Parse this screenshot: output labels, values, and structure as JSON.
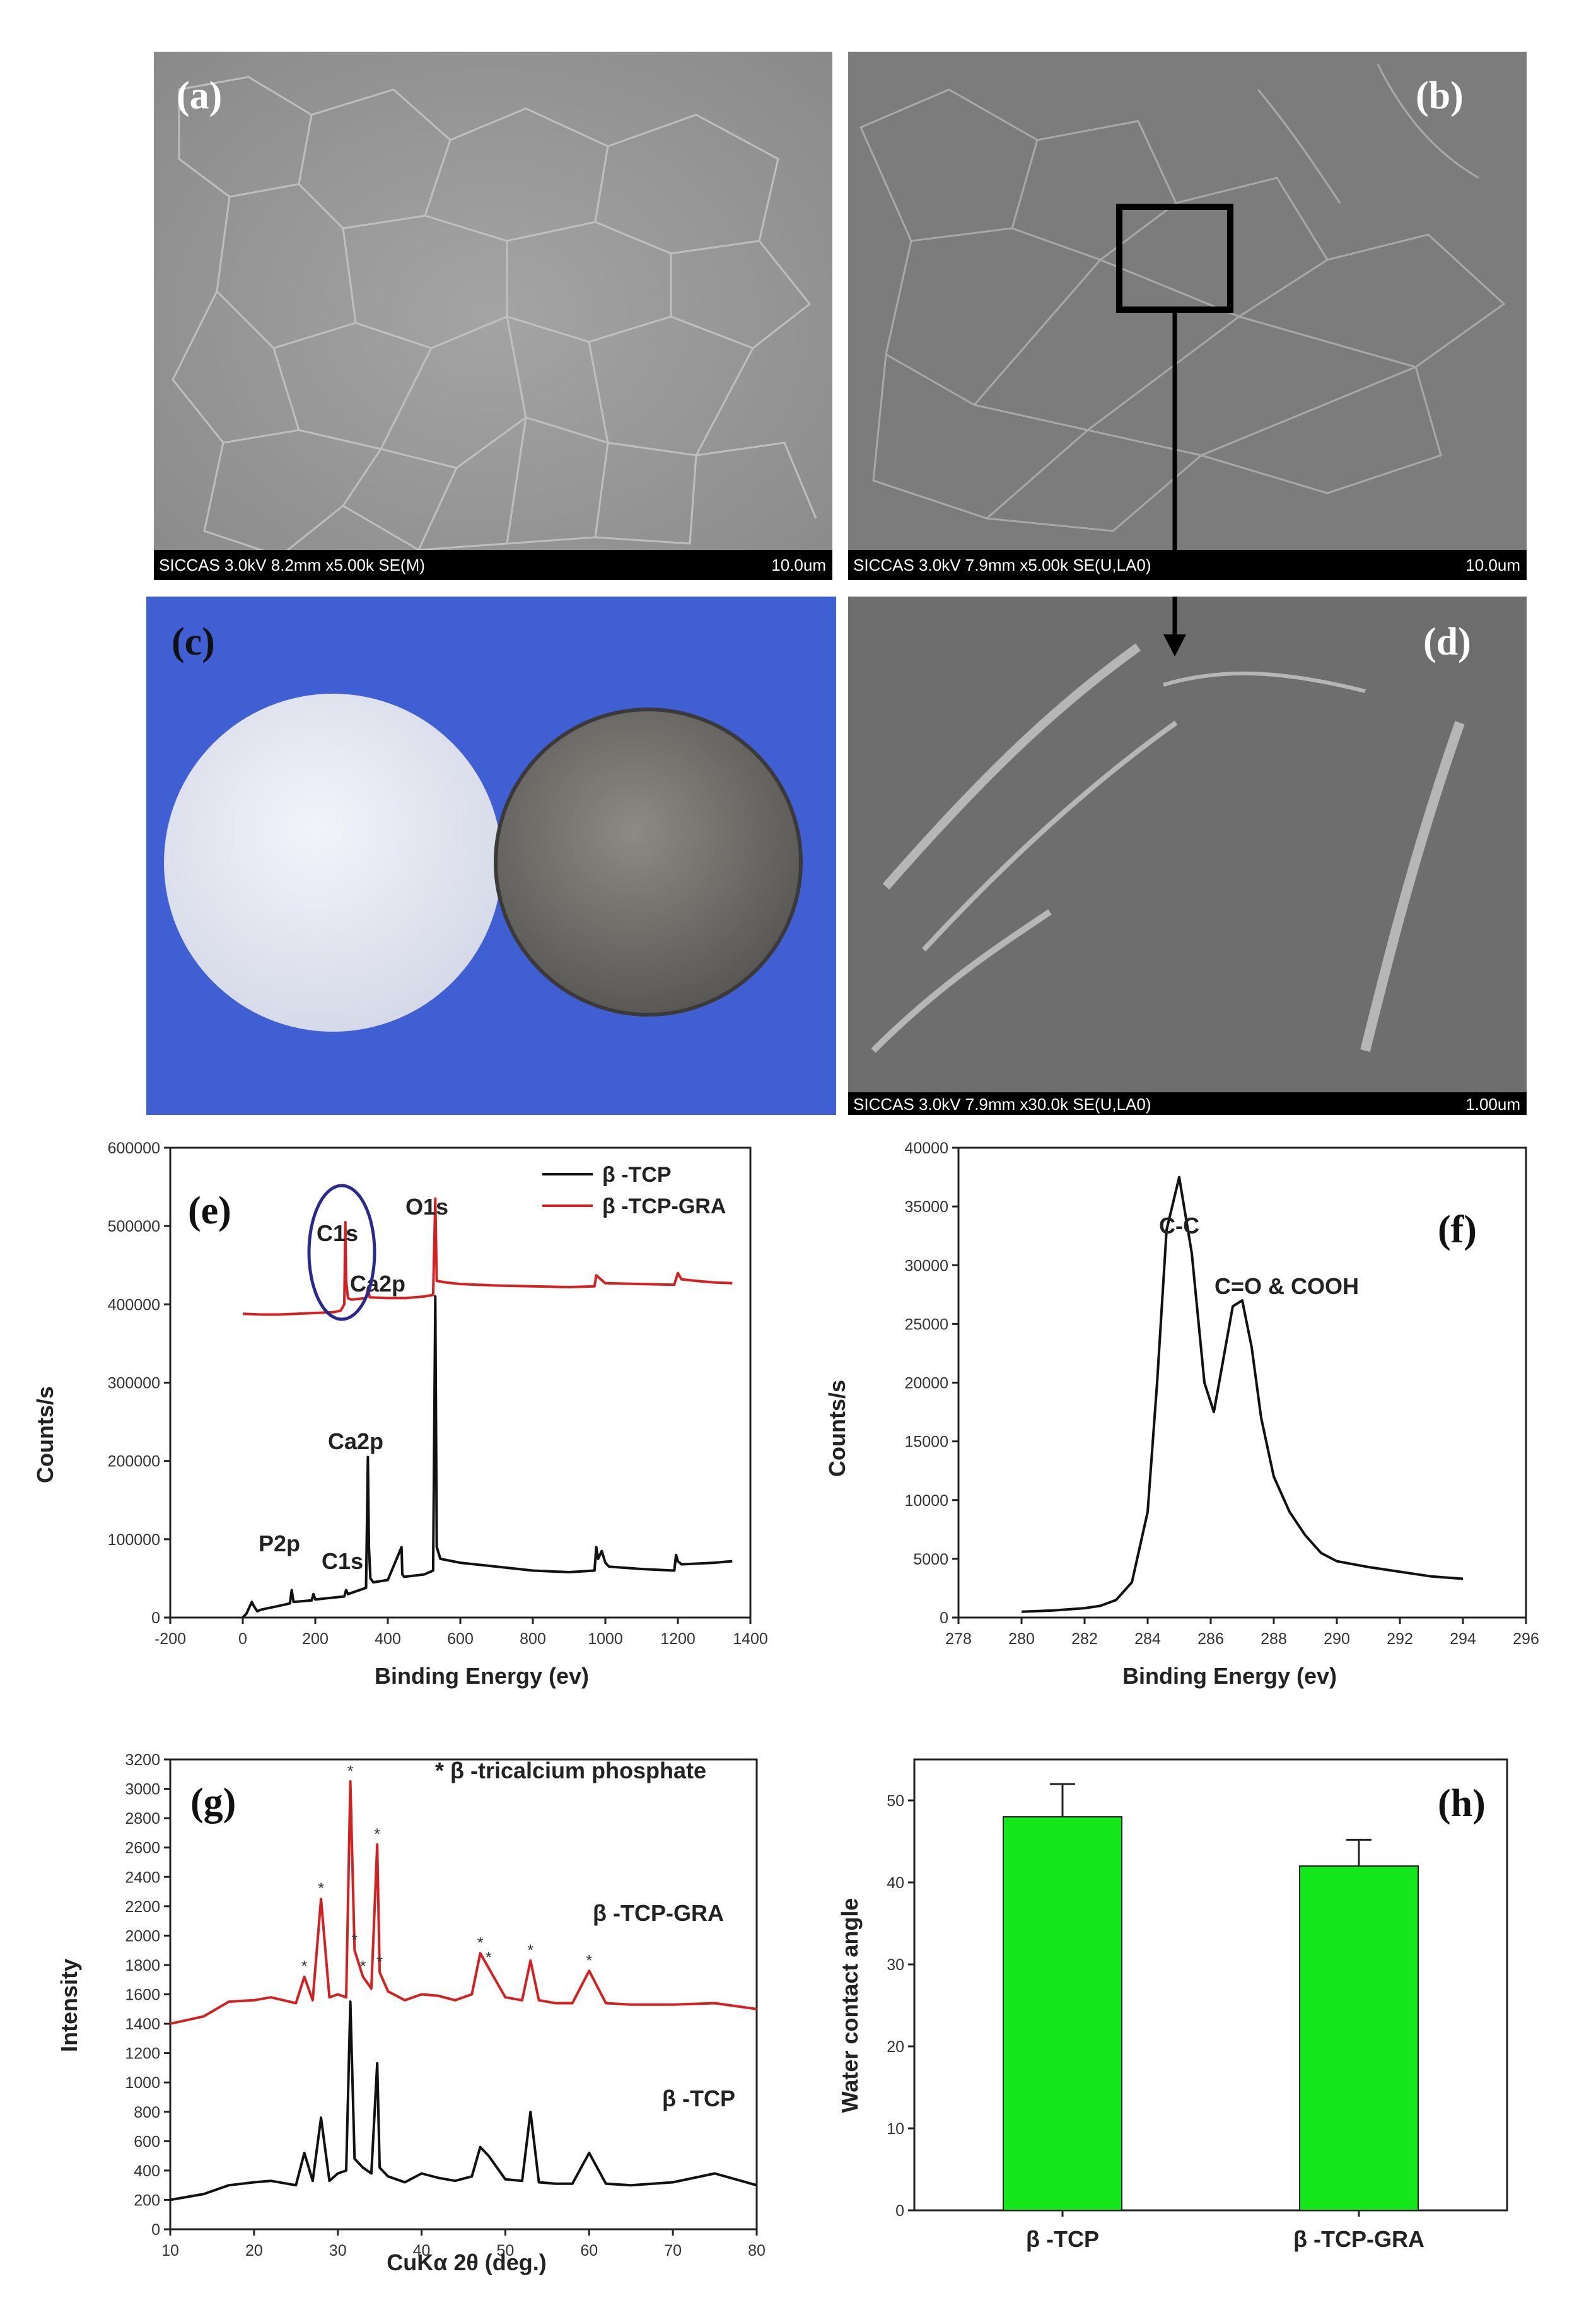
{
  "panels": {
    "a": {
      "label": "(a)",
      "info": "SICCAS 3.0kV 8.2mm x5.00k SE(M)",
      "scale": "10.0um"
    },
    "b": {
      "label": "(b)",
      "info": "SICCAS 3.0kV 7.9mm x5.00k SE(U,LA0)",
      "scale": "10.0um"
    },
    "c": {
      "label": "(c)"
    },
    "d": {
      "label": "(d)",
      "info": "SICCAS 3.0kV 7.9mm x30.0k SE(U,LA0)",
      "scale": "1.00um"
    },
    "e": {
      "label": "(e)"
    },
    "f": {
      "label": "(f)"
    },
    "g": {
      "label": "(g)"
    },
    "h": {
      "label": "(h)"
    }
  },
  "colors": {
    "tcp": "#111111",
    "tcp_gra": "#d32121",
    "bar": "#14e81a",
    "ellipse": "#2a2a8e",
    "photo_bg": "#3f5fd2"
  },
  "chart_data": [
    {
      "id": "e",
      "type": "line",
      "xlabel": "Binding Energy (ev)",
      "ylabel": "Counts/s",
      "xlim": [
        -200,
        1400
      ],
      "ylim": [
        0,
        600000
      ],
      "xticks": [
        -200,
        0,
        200,
        400,
        600,
        800,
        1000,
        1200,
        1400
      ],
      "yticks": [
        0,
        100000,
        200000,
        300000,
        400000,
        500000,
        600000
      ],
      "legend": [
        "β -TCP",
        "β -TCP-GRA"
      ],
      "legend_position": "top-right",
      "annotations": [
        "C1s",
        "O1s",
        "Ca2p",
        "Ca2p",
        "P2p",
        "C1s"
      ],
      "series": [
        {
          "name": "β -TCP",
          "x": [
            0,
            10,
            25,
            30,
            40,
            50,
            100,
            130,
            135,
            140,
            190,
            195,
            200,
            280,
            285,
            290,
            340,
            345,
            348,
            352,
            360,
            400,
            438,
            440,
            445,
            500,
            525,
            531,
            535,
            545,
            600,
            700,
            800,
            900,
            970,
            975,
            980,
            990,
            1000,
            1010,
            1100,
            1190,
            1195,
            1200,
            1210,
            1300,
            1350
          ],
          "y": [
            0,
            5000,
            20000,
            15000,
            8000,
            10000,
            15000,
            18000,
            35000,
            20000,
            22000,
            30000,
            23000,
            27000,
            35000,
            30000,
            38000,
            205000,
            90000,
            50000,
            45000,
            48000,
            90000,
            55000,
            52000,
            55000,
            60000,
            410000,
            90000,
            75000,
            70000,
            65000,
            60000,
            58000,
            60000,
            90000,
            75000,
            85000,
            70000,
            65000,
            62000,
            60000,
            80000,
            72000,
            68000,
            70000,
            72000
          ]
        },
        {
          "name": "β -TCP-GRA",
          "x": [
            0,
            50,
            100,
            150,
            200,
            250,
            270,
            280,
            283,
            285,
            290,
            300,
            340,
            345,
            350,
            400,
            450,
            500,
            525,
            531,
            535,
            560,
            600,
            700,
            800,
            900,
            970,
            975,
            1000,
            1100,
            1190,
            1200,
            1210,
            1250,
            1300,
            1350
          ],
          "y": [
            388000,
            387000,
            387000,
            388000,
            389000,
            390000,
            392000,
            400000,
            505000,
            430000,
            408000,
            406000,
            408000,
            420000,
            409000,
            408000,
            408000,
            410000,
            412000,
            535000,
            430000,
            428000,
            426000,
            424000,
            423000,
            422000,
            423000,
            437000,
            427000,
            426000,
            425000,
            440000,
            432000,
            430000,
            428000,
            427000
          ]
        }
      ]
    },
    {
      "id": "f",
      "type": "line",
      "xlabel": "Binding Energy (ev)",
      "ylabel": "Counts/s",
      "xlim": [
        278,
        296
      ],
      "ylim": [
        0,
        40000
      ],
      "xticks": [
        278,
        280,
        282,
        284,
        286,
        288,
        290,
        292,
        294,
        296
      ],
      "yticks": [
        0,
        5000,
        10000,
        15000,
        20000,
        25000,
        30000,
        35000,
        40000
      ],
      "annotations": [
        "C-C",
        "C=O & COOH"
      ],
      "series": [
        {
          "name": "",
          "x": [
            280,
            281,
            282,
            282.5,
            283,
            283.5,
            284,
            284.3,
            284.6,
            285,
            285.4,
            285.8,
            286.1,
            286.4,
            286.7,
            287,
            287.3,
            287.6,
            288,
            288.5,
            289,
            289.5,
            290,
            291,
            292,
            293,
            294
          ],
          "y": [
            500,
            600,
            800,
            1000,
            1500,
            3000,
            9000,
            20000,
            33000,
            37500,
            31000,
            20000,
            17500,
            22000,
            26500,
            27000,
            23000,
            17000,
            12000,
            9000,
            7000,
            5500,
            4800,
            4300,
            3900,
            3500,
            3300
          ]
        }
      ]
    },
    {
      "id": "g",
      "type": "line",
      "xlabel": "CuKα 2θ (deg.)",
      "ylabel": "Intensity",
      "xlim": [
        10,
        80
      ],
      "ylim": [
        0,
        3200
      ],
      "xticks": [
        10,
        20,
        30,
        40,
        50,
        60,
        70,
        80
      ],
      "yticks": [
        0,
        200,
        400,
        600,
        800,
        1000,
        1200,
        1400,
        1600,
        1800,
        2000,
        2200,
        2400,
        2600,
        2800,
        3000,
        3200
      ],
      "annotations": [
        "* β -tricalcium phosphate",
        "β -TCP-GRA",
        "β -TCP"
      ],
      "series": [
        {
          "name": "β -TCP-GRA",
          "x": [
            10,
            14,
            17,
            20,
            22,
            25,
            26,
            27,
            28,
            29,
            30,
            31,
            31.5,
            32,
            33,
            34,
            34.7,
            35,
            36,
            38,
            40,
            42,
            44,
            46,
            47,
            48,
            50,
            52,
            53,
            54,
            56,
            58,
            60,
            62,
            65,
            70,
            75,
            80
          ],
          "y": [
            1400,
            1450,
            1550,
            1560,
            1580,
            1540,
            1720,
            1560,
            2250,
            1580,
            1600,
            1580,
            3050,
            1900,
            1720,
            1640,
            2620,
            1750,
            1620,
            1560,
            1600,
            1590,
            1560,
            1600,
            1880,
            1780,
            1580,
            1560,
            1830,
            1560,
            1540,
            1540,
            1760,
            1540,
            1530,
            1530,
            1540,
            1500
          ]
        },
        {
          "name": "β -TCP",
          "x": [
            10,
            14,
            17,
            20,
            22,
            25,
            26,
            27,
            28,
            29,
            30,
            31,
            31.5,
            32,
            33,
            34,
            34.7,
            35,
            36,
            38,
            40,
            42,
            44,
            46,
            47,
            48,
            50,
            52,
            53,
            54,
            56,
            58,
            60,
            62,
            65,
            70,
            75,
            80
          ],
          "y": [
            200,
            240,
            300,
            320,
            330,
            300,
            520,
            330,
            760,
            330,
            380,
            400,
            1550,
            480,
            420,
            380,
            1130,
            420,
            360,
            320,
            380,
            350,
            330,
            360,
            560,
            500,
            340,
            330,
            800,
            320,
            310,
            310,
            520,
            310,
            300,
            320,
            380,
            300
          ]
        }
      ]
    },
    {
      "id": "h",
      "type": "bar",
      "xlabel": "",
      "ylabel": "Water contact angle",
      "categories": [
        "β -TCP",
        "β -TCP-GRA"
      ],
      "values": [
        48,
        42
      ],
      "errors": [
        4,
        3.2
      ],
      "ylim": [
        0,
        55
      ],
      "yticks": [
        0,
        10,
        20,
        30,
        40,
        50
      ]
    }
  ]
}
